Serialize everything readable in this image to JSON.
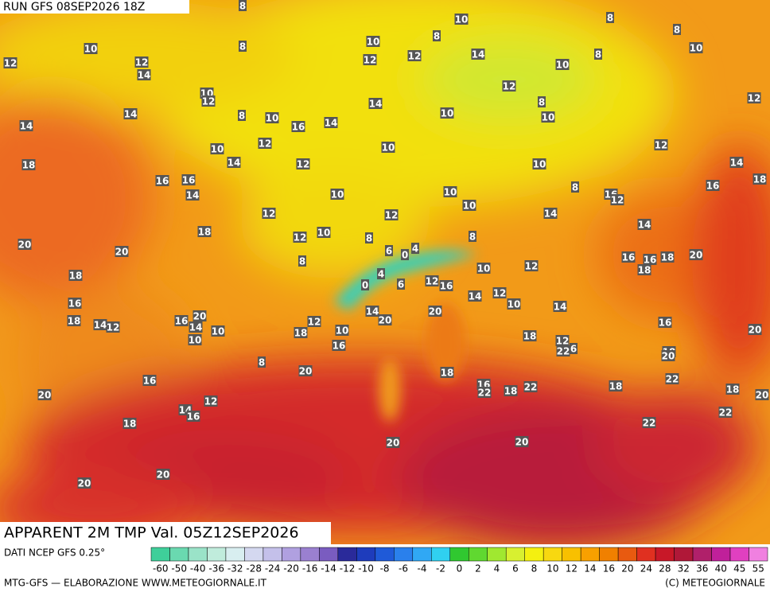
{
  "header": {
    "run": "RUN GFS 08SEP2026 18Z"
  },
  "map": {
    "labels": [
      8,
      10,
      8,
      8,
      8,
      12,
      10,
      12,
      14,
      8,
      10,
      12,
      12,
      14,
      10,
      8,
      10,
      12,
      10,
      12,
      14,
      8,
      10,
      16,
      14,
      14,
      10,
      8,
      10,
      12,
      14,
      10,
      12,
      14,
      12,
      10,
      12,
      18,
      16,
      16,
      14,
      10,
      10,
      10,
      8,
      16,
      12,
      14,
      16,
      18,
      12,
      10,
      14,
      12,
      18,
      12,
      10,
      8,
      20,
      20,
      8,
      6,
      0,
      4,
      8,
      14,
      16,
      16,
      18,
      18,
      20,
      18,
      4,
      0,
      6,
      12,
      16,
      10,
      12,
      16,
      18,
      14,
      12,
      16,
      20,
      14,
      10,
      10,
      18,
      12,
      10,
      14,
      20,
      20,
      14,
      12,
      10,
      14,
      16,
      20,
      16,
      8,
      18,
      12,
      22,
      6,
      18,
      20,
      20,
      18,
      16,
      16,
      22,
      18,
      22,
      18,
      22,
      18,
      20,
      20,
      12,
      14,
      16,
      18,
      22,
      22,
      20,
      20,
      20,
      20
    ]
  },
  "footer": {
    "title": "APPARENT 2M TMP Val. 05Z12SEP2026",
    "source": "DATI NCEP GFS 0.25°",
    "credit": "MTG-GFS — ELABORAZIONE WWW.METEOGIORNALE.IT",
    "copyright": "(C) METEOGIORNALE"
  },
  "colorbar": {
    "ticks": [
      -60,
      -50,
      -40,
      -36,
      -32,
      -28,
      -24,
      -20,
      -16,
      -14,
      -12,
      -10,
      -8,
      -6,
      -4,
      -2,
      0,
      2,
      4,
      6,
      8,
      10,
      12,
      14,
      16,
      20,
      24,
      28,
      32,
      36,
      40,
      45,
      55
    ],
    "colors": [
      "#3fcf9a",
      "#6ad9b0",
      "#9ae3c8",
      "#c0ecdc",
      "#d8eef0",
      "#d4d8f0",
      "#c4c0ea",
      "#b0a0e0",
      "#9a80d0",
      "#7a5cc0",
      "#2a2a9a",
      "#1e3cbc",
      "#1f5ad8",
      "#2a80ec",
      "#30a8f4",
      "#30d0f0",
      "#30c830",
      "#60d830",
      "#a0e830",
      "#d8f030",
      "#f4f010",
      "#f8d810",
      "#f8c000",
      "#f8a000",
      "#f08000",
      "#e85a10",
      "#e03020",
      "#c81828",
      "#b01838",
      "#b0206a",
      "#c0209a",
      "#e040c0",
      "#f080e0"
    ]
  }
}
